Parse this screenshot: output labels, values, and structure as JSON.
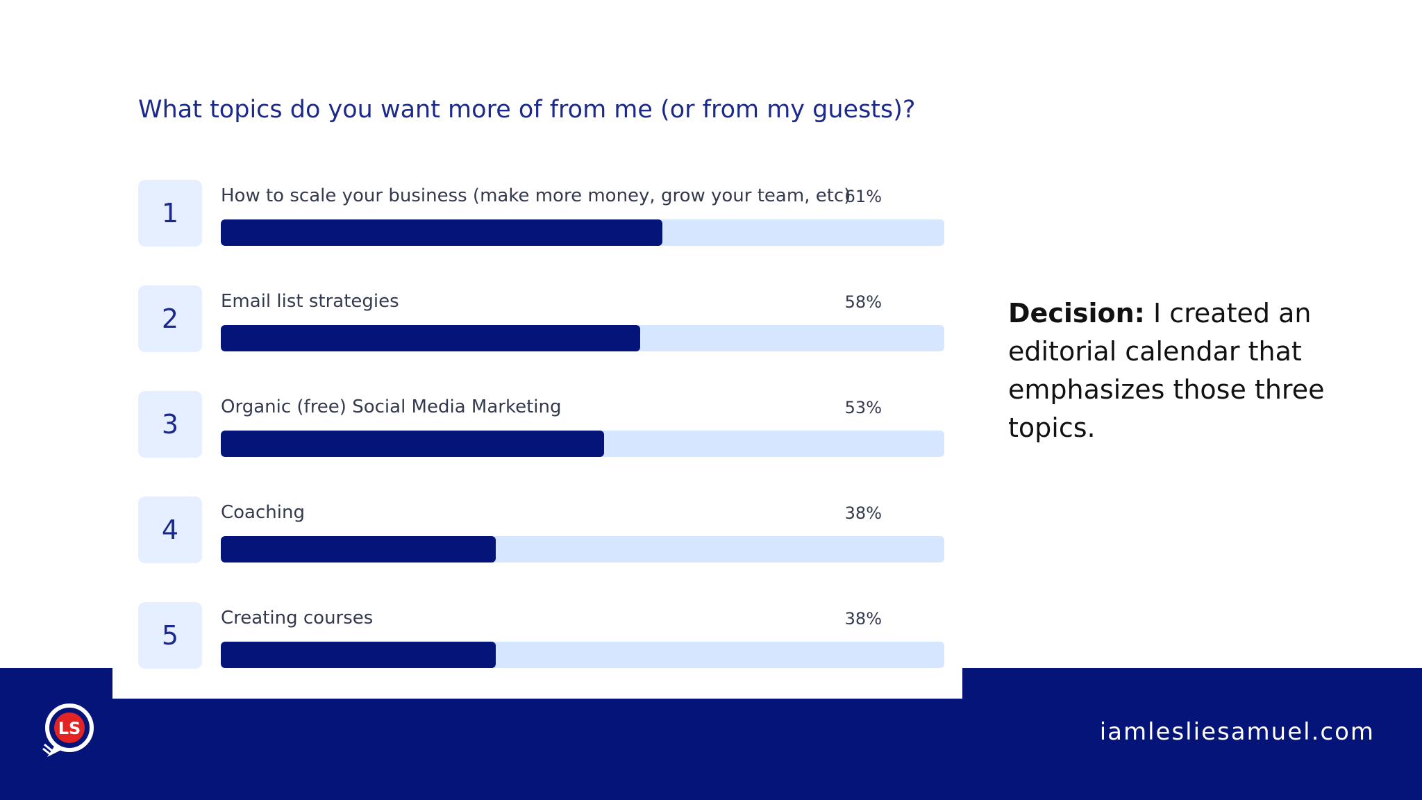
{
  "slide": {
    "decision_label": "Decision:",
    "decision_text": " I created an editorial calendar that emphasizes those three topics.",
    "footer_url": "iamlesliesamuel.com",
    "logo_text": "LS"
  },
  "colors": {
    "navy": "#041478",
    "bar_track": "#d7e6ff",
    "rank_box": "#e6efff",
    "title": "#1b2a8a",
    "logo_red": "#e32424"
  },
  "chart_data": {
    "type": "bar",
    "orientation": "horizontal",
    "title": "What topics do you want more of from me (or from my guests)?",
    "xlim": [
      0,
      100
    ],
    "unit": "%",
    "ranks": [
      "1",
      "2",
      "3",
      "4",
      "5"
    ],
    "categories": [
      "How to scale your business (make more money, grow your team, etc)",
      "Email list strategies",
      "Organic (free) Social Media Marketing",
      "Coaching",
      "Creating courses"
    ],
    "values": [
      61,
      58,
      53,
      38,
      38
    ],
    "value_labels": [
      "61%",
      "58%",
      "53%",
      "38%",
      "38%"
    ]
  }
}
